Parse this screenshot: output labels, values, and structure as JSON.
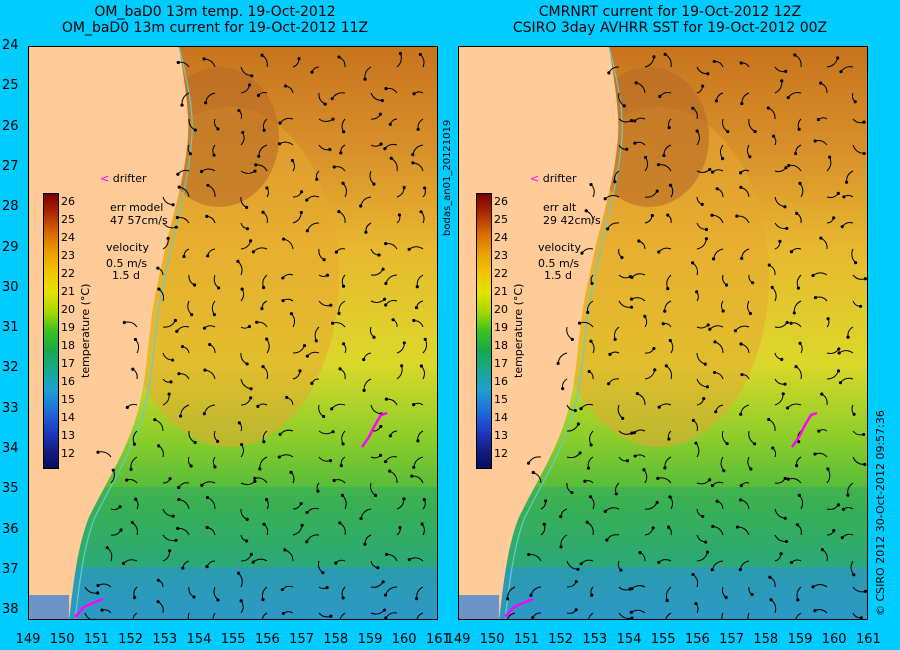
{
  "left": {
    "title1": "OM_baD0 13m temp. 19-Oct-2012",
    "title2": "OM_baD0 13m current for 19-Oct-2012 11Z",
    "drifter": "drifter",
    "err_label": "err model",
    "err_value": "47 57cm/s",
    "velocity_label": "velocity",
    "velocity_scale": "0.5 m/s",
    "velocity_days": "1.5 d",
    "cbar_title": "temperature (°C)"
  },
  "right": {
    "title1": "CMRNRT current for 19-Oct-2012 12Z",
    "title2": "CSIRO 3day AVHRR SST for 19-Oct-2012 00Z",
    "drifter": "drifter",
    "err_label": "err alt",
    "err_value": "29 42cm/s",
    "velocity_label": "velocity",
    "velocity_scale": "0.5 m/s",
    "velocity_days": "1.5 d",
    "cbar_title": "temperature (°C)"
  },
  "middle_label": "bodas_an01_20121019",
  "right_margin_label": "© CSIRO 2012   30-Oct-2012 09:57:36",
  "y_ticks": [
    "24",
    "25",
    "26",
    "27",
    "28",
    "29",
    "30",
    "31",
    "32",
    "33",
    "34",
    "35",
    "36",
    "37",
    "38"
  ],
  "x_ticks": [
    "149",
    "150",
    "151",
    "152",
    "153",
    "154",
    "155",
    "156",
    "157",
    "158",
    "159",
    "160",
    "161"
  ],
  "colorbar_ticks": [
    "26",
    "25",
    "24",
    "23",
    "22",
    "21",
    "20",
    "19",
    "18",
    "17",
    "16",
    "15",
    "14",
    "13",
    "12"
  ],
  "colors": {
    "background": "#00ccff",
    "land": "#ffcc99",
    "drifter": "#ff00ff",
    "coast": "#66cccc"
  }
}
